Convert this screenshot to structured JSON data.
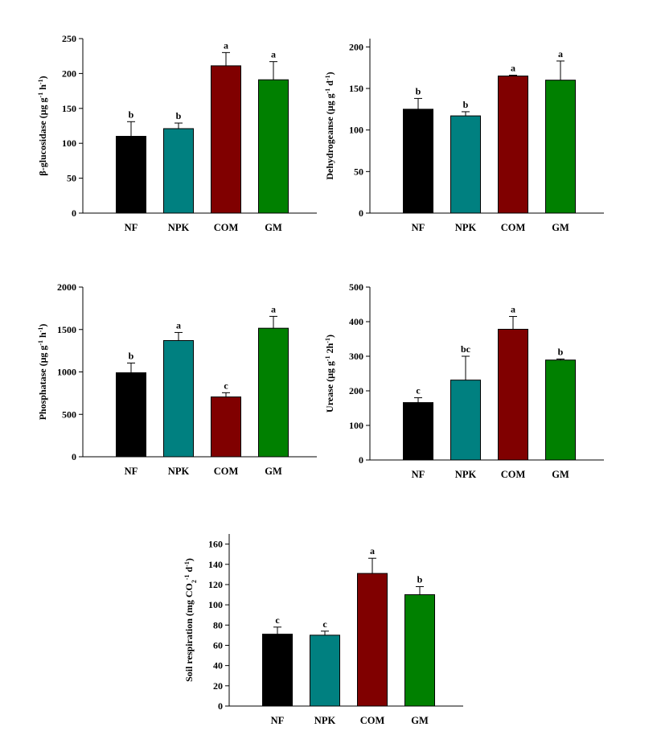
{
  "chart_data": [
    {
      "type": "bar",
      "categories": [
        "NF",
        "NPK",
        "COM",
        "GM"
      ],
      "values": [
        110,
        121,
        211,
        191
      ],
      "errors": [
        21,
        8,
        19,
        26
      ],
      "significance": [
        "b",
        "b",
        "a",
        "a"
      ],
      "ylabel": "β-glucosidase (μg g⁻¹ h⁻¹)",
      "ylabel_parts": [
        {
          "t": "β-glucosidase (μg g"
        },
        {
          "t": "-1",
          "sup": true
        },
        {
          "t": " h"
        },
        {
          "t": "-1",
          "sup": true
        },
        {
          "t": ")"
        }
      ],
      "ylim": [
        0,
        250
      ],
      "yticks": [
        "0",
        "50",
        "100",
        "150",
        "200",
        "250"
      ],
      "colors": [
        "#000000",
        "#008080",
        "#800000",
        "#008000"
      ]
    },
    {
      "type": "bar",
      "categories": [
        "NF",
        "NPK",
        "COM",
        "GM"
      ],
      "values": [
        125,
        117,
        165,
        160
      ],
      "errors": [
        13,
        5,
        1,
        23
      ],
      "significance": [
        "b",
        "b",
        "a",
        "a"
      ],
      "ylabel": "Dehydrogeanse (μg g⁻¹ d⁻¹)",
      "ylabel_parts": [
        {
          "t": "Dehydrogeanse (μg g"
        },
        {
          "t": "-1",
          "sup": true
        },
        {
          "t": " d"
        },
        {
          "t": "-1",
          "sup": true
        },
        {
          "t": ")"
        }
      ],
      "ylim": [
        0,
        210
      ],
      "yticks": [
        "0",
        "50",
        "100",
        "150",
        "200"
      ],
      "colors": [
        "#000000",
        "#008080",
        "#800000",
        "#008000"
      ]
    },
    {
      "type": "bar",
      "categories": [
        "NF",
        "NPK",
        "COM",
        "GM"
      ],
      "values": [
        990,
        1370,
        705,
        1515
      ],
      "errors": [
        115,
        95,
        50,
        140
      ],
      "significance": [
        "b",
        "a",
        "c",
        "a"
      ],
      "ylabel": "Phosphatase (μg g⁻¹ h⁻¹)",
      "ylabel_parts": [
        {
          "t": "Phosphatase (μg g"
        },
        {
          "t": "-1",
          "sup": true
        },
        {
          "t": " h"
        },
        {
          "t": "-1",
          "sup": true
        },
        {
          "t": ")"
        }
      ],
      "ylim": [
        0,
        2000
      ],
      "yticks": [
        "0",
        "500",
        "1000",
        "1500",
        "2000"
      ],
      "colors": [
        "#000000",
        "#008080",
        "#800000",
        "#008000"
      ]
    },
    {
      "type": "bar",
      "categories": [
        "NF",
        "NPK",
        "COM",
        "GM"
      ],
      "values": [
        166,
        231,
        378,
        289
      ],
      "errors": [
        14,
        69,
        37,
        3
      ],
      "significance": [
        "c",
        "bc",
        "a",
        "b"
      ],
      "ylabel": "Urease (μg g⁻¹ 2h⁻¹)",
      "ylabel_parts": [
        {
          "t": "Urease (μg g"
        },
        {
          "t": "-1",
          "sup": true
        },
        {
          "t": " 2h"
        },
        {
          "t": "-1",
          "sup": true
        },
        {
          "t": ")"
        }
      ],
      "ylim": [
        0,
        500
      ],
      "yticks": [
        "0",
        "100",
        "200",
        "300",
        "400",
        "500"
      ],
      "colors": [
        "#000000",
        "#008080",
        "#800000",
        "#008000"
      ]
    },
    {
      "type": "bar",
      "categories": [
        "NF",
        "NPK",
        "COM",
        "GM"
      ],
      "values": [
        71,
        70,
        131,
        110
      ],
      "errors": [
        7,
        4,
        15,
        8
      ],
      "significance": [
        "c",
        "c",
        "a",
        "b"
      ],
      "ylabel": "Soil respiration (mg CO₂⁻¹ d⁻¹)",
      "ylabel_parts": [
        {
          "t": "Soil respiration (mg CO"
        },
        {
          "t": "2",
          "sub": true
        },
        {
          "t": "-1",
          "sup": true
        },
        {
          "t": " d"
        },
        {
          "t": "-1",
          "sup": true
        },
        {
          "t": ")"
        }
      ],
      "ylim": [
        0,
        170
      ],
      "yticks": [
        "0",
        "20",
        "40",
        "60",
        "80",
        "100",
        "120",
        "140",
        "160"
      ],
      "colors": [
        "#000000",
        "#008080",
        "#800000",
        "#008000"
      ]
    }
  ]
}
